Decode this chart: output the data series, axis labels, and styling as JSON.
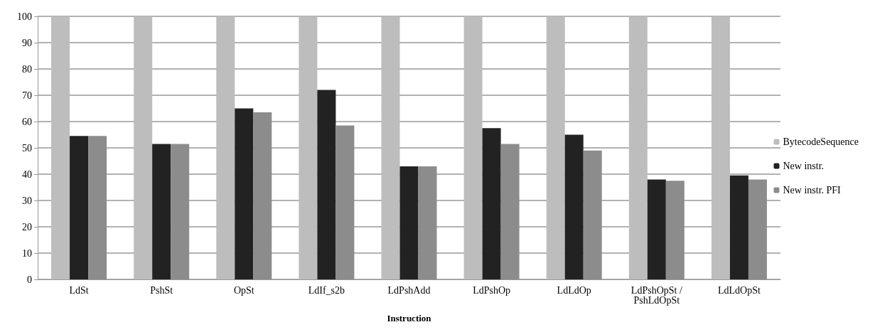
{
  "chart_data": {
    "type": "bar",
    "xlabel": "Instruction",
    "categories": [
      "LdSt",
      "PshSt",
      "OpSt",
      "LdIf_s2b",
      "LdPshAdd",
      "LdPshOp",
      "LdLdOp",
      "LdPshOpSt /\nPshLdOpSt",
      "LdLdOpSt"
    ],
    "series": [
      {
        "name": "BytecodeSequence",
        "color": "#bdbdbd",
        "values": [
          100,
          100,
          100,
          100,
          100,
          100,
          100,
          100,
          100
        ]
      },
      {
        "name": "New instr.",
        "color": "#222222",
        "values": [
          54.5,
          51.5,
          65,
          72,
          43,
          57.5,
          55,
          38,
          39.5
        ]
      },
      {
        "name": "New instr. PFI",
        "color": "#8c8c8c",
        "values": [
          54.5,
          51.5,
          63.5,
          58.5,
          43,
          51.5,
          49,
          37.5,
          38
        ]
      }
    ],
    "ylim": [
      0,
      100
    ],
    "yticks": [
      0,
      10,
      20,
      30,
      40,
      50,
      60,
      70,
      80,
      90,
      100
    ],
    "grid": "y",
    "legend": "right"
  }
}
